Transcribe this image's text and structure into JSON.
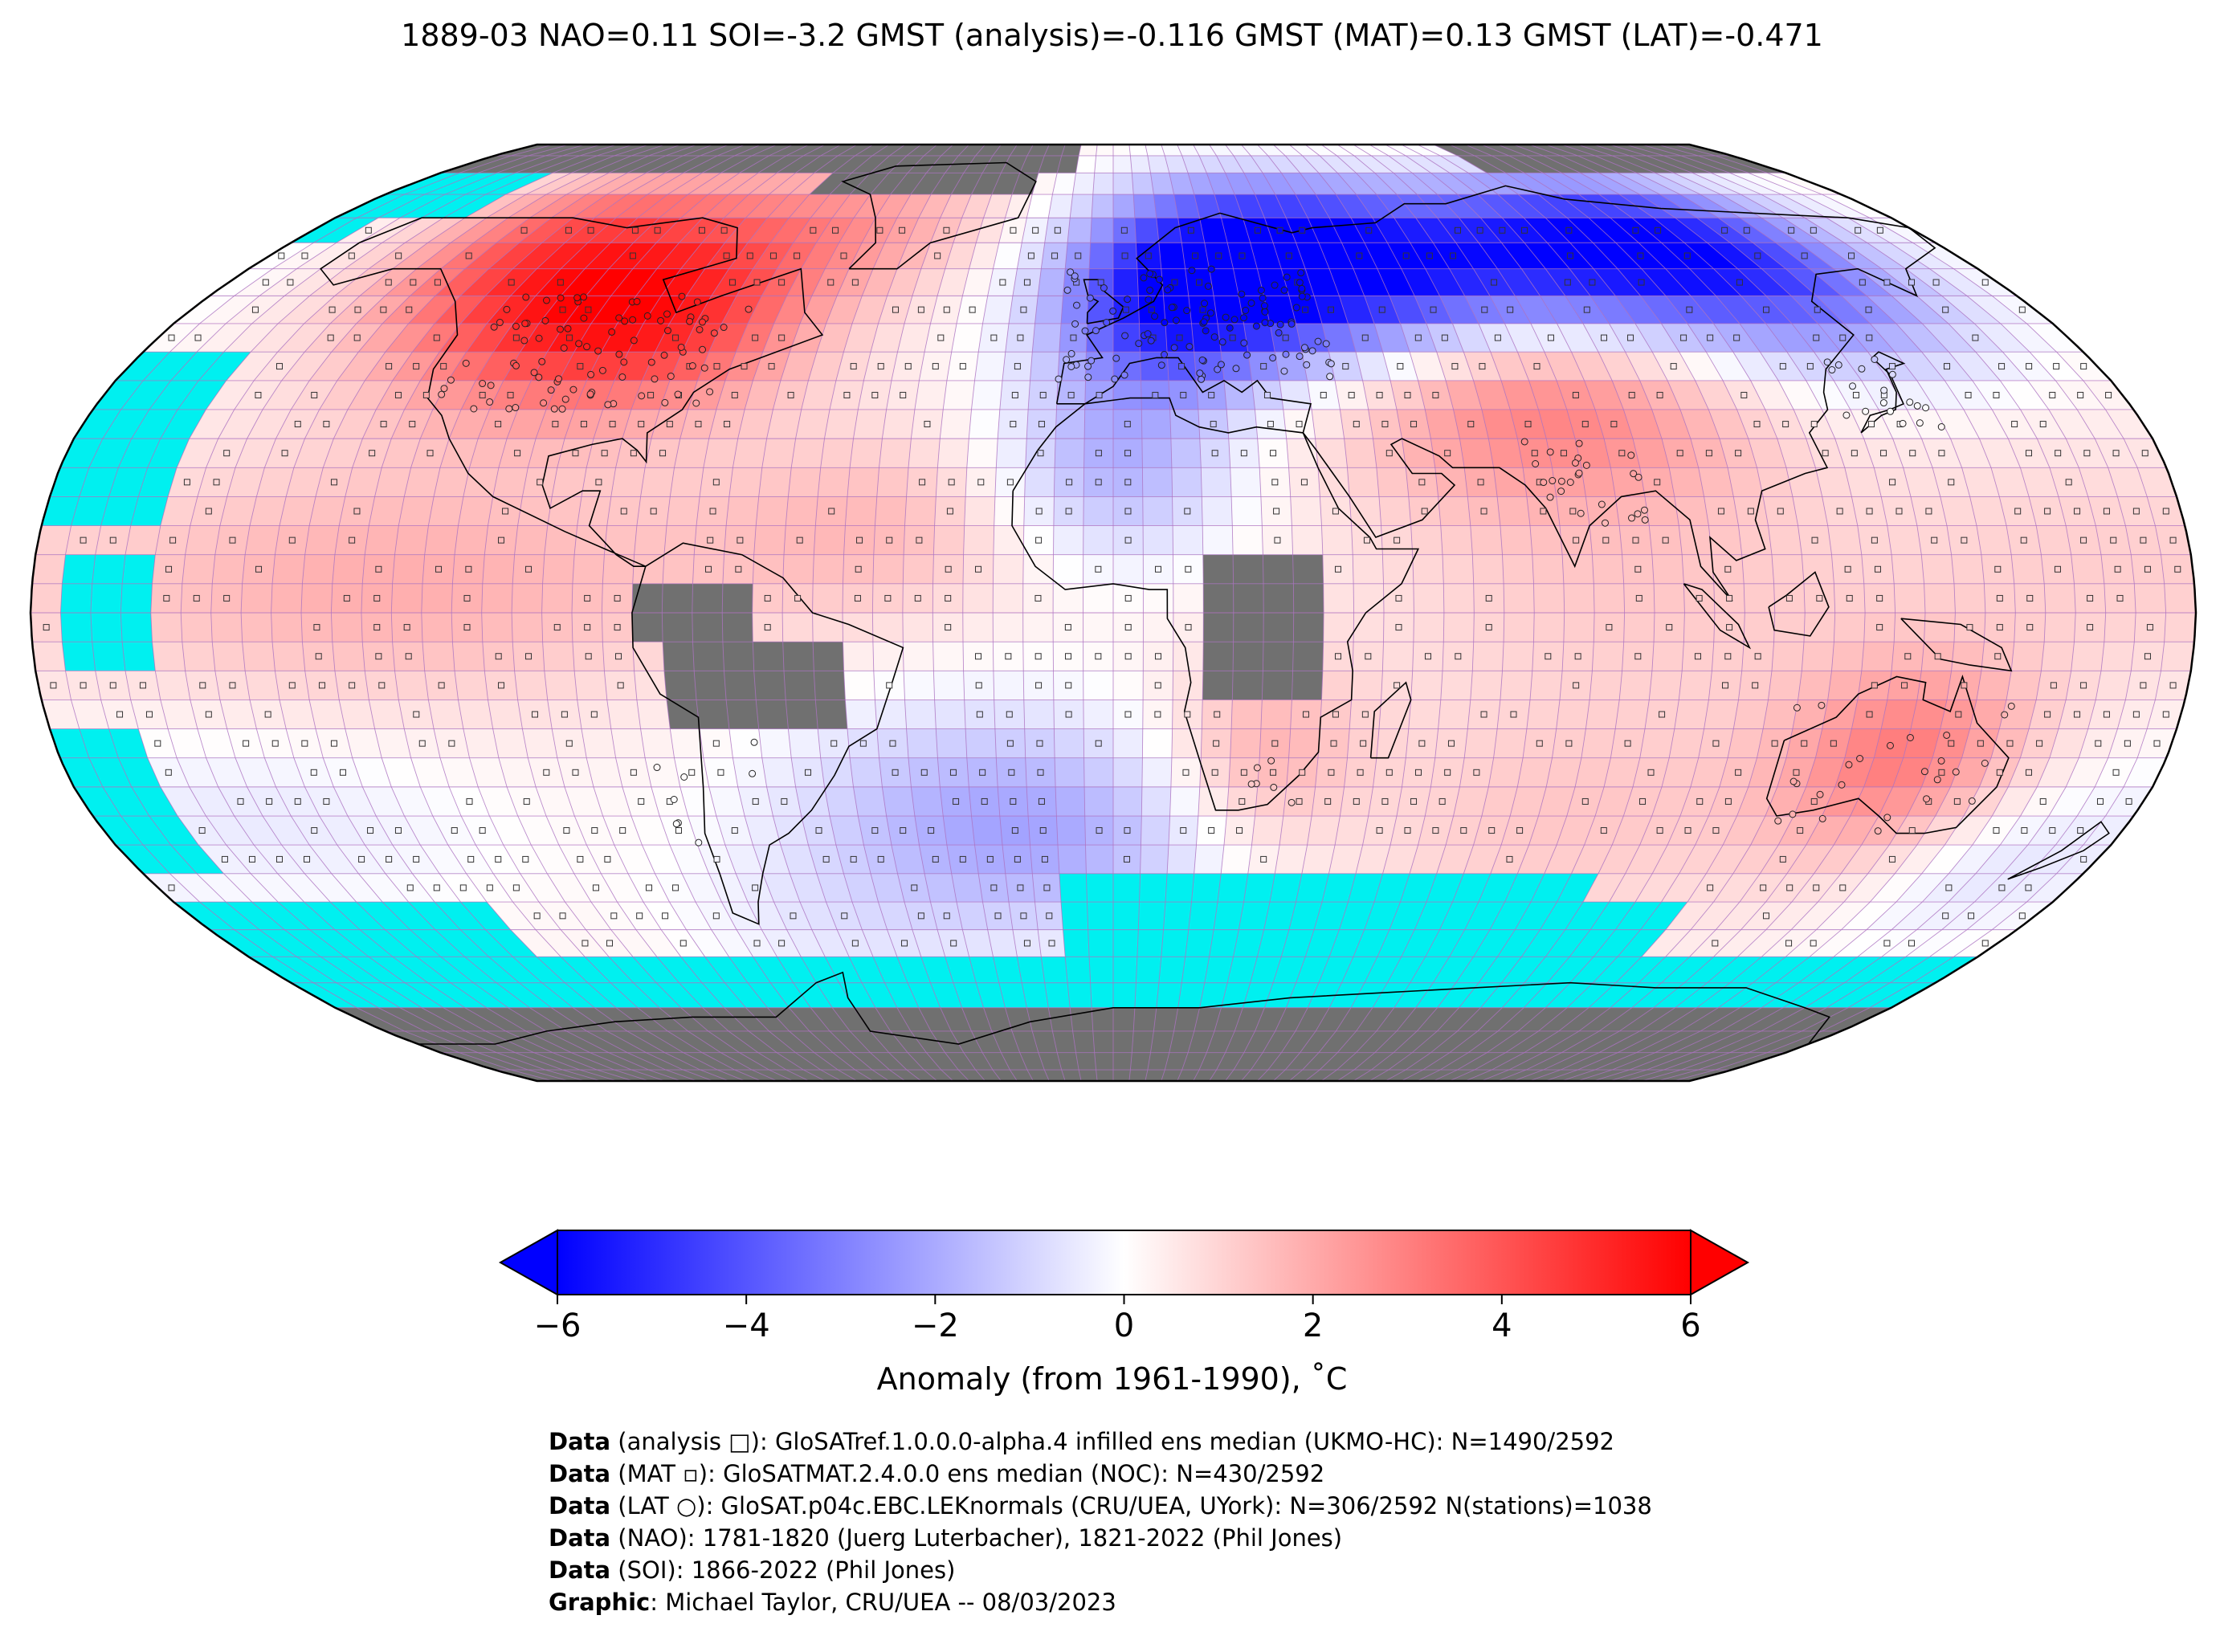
{
  "title": "1889-03 NAO=0.11 SOI=-3.2 GMST (analysis)=-0.116 GMST (MAT)=0.13 GMST (LAT)=-0.471",
  "colors": {
    "ocean_missing": "#00f0f0",
    "land_missing": "#707070",
    "grid": "#b070c0",
    "coast": "#000000",
    "cold": "#0000ff",
    "neutral": "#ffffff",
    "warm": "#ff0000"
  },
  "colorbar": {
    "label": "Anomaly (from 1961-1990), ˚C",
    "ticks": [
      "−6",
      "−4",
      "−2",
      "0",
      "2",
      "4",
      "6"
    ],
    "tick_values": [
      -6,
      -4,
      -2,
      0,
      2,
      4,
      6
    ],
    "range": [
      -6,
      6
    ],
    "extend": "both"
  },
  "credits": [
    {
      "bold": "Data",
      "text": " (analysis □): GloSATref.1.0.0.0-alpha.4 infilled ens median (UKMO-HC): N=1490/2592"
    },
    {
      "bold": "Data",
      "text": " (MAT ▫): GloSATMAT.2.4.0.0 ens median (NOC): N=430/2592"
    },
    {
      "bold": "Data",
      "text": " (LAT ○): GloSAT.p04c.EBC.LEKnormals (CRU/UEA, UYork): N=306/2592 N(stations)=1038"
    },
    {
      "bold": "Data",
      "text": " (NAO): 1781-1820 (Juerg Luterbacher), 1821-2022 (Phil Jones)"
    },
    {
      "bold": "Data",
      "text": " (SOI): 1866-2022 (Phil Jones)"
    },
    {
      "bold": "Graphic",
      "text": ": Michael Taylor, CRU/UEA -- 08/03/2023"
    }
  ],
  "anomaly_field": {
    "grid": "5x5 degree",
    "projection": "Robinson",
    "regions": [
      {
        "name": "North America (west/central)",
        "anomaly": 4.5
      },
      {
        "name": "North America (east)",
        "anomaly": 2.5
      },
      {
        "name": "Greenland/Arctic Canada",
        "anomaly": 2.0
      },
      {
        "name": "Scandinavia/Western Russia",
        "anomaly": -5.5
      },
      {
        "name": "Siberia",
        "anomaly": -4.5
      },
      {
        "name": "Europe",
        "anomaly": -3.0
      },
      {
        "name": "Central Asia/Tibet",
        "anomaly": 2.5
      },
      {
        "name": "North Africa/Sahara",
        "anomaly": -2.0
      },
      {
        "name": "Tropical Atlantic",
        "anomaly": 1.0
      },
      {
        "name": "Eastern Tropical Pacific",
        "anomaly": 1.5
      },
      {
        "name": "South Atlantic",
        "anomaly": -1.5
      },
      {
        "name": "Australia",
        "anomaly": 2.5
      },
      {
        "name": "Southern Africa",
        "anomaly": 1.5
      },
      {
        "name": "Southern Indian Ocean",
        "anomaly": 1.0
      }
    ]
  }
}
